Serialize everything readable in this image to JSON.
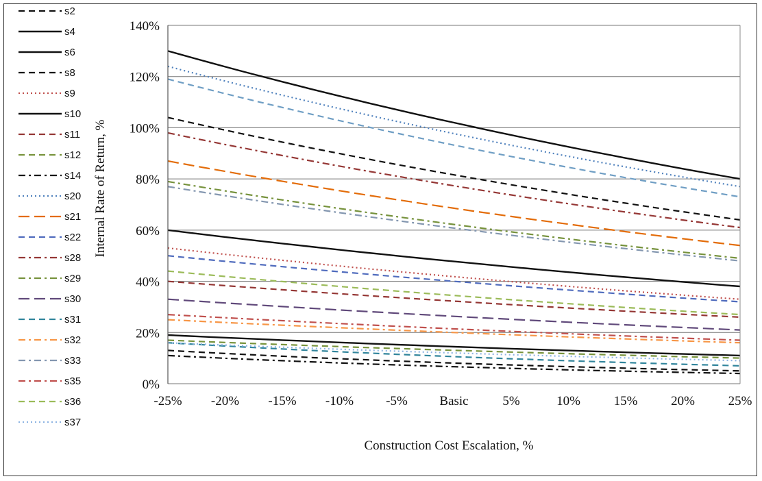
{
  "chart_data": {
    "type": "line",
    "title": "",
    "xlabel": "Construction Cost Escalation, %",
    "ylabel": "Internal Rate of Return, %",
    "categories": [
      "-25%",
      "-20%",
      "-15%",
      "-10%",
      "-5%",
      "Basic",
      "5%",
      "10%",
      "15%",
      "20%",
      "25%"
    ],
    "x_percent": [
      -25,
      -20,
      -15,
      -10,
      -5,
      0,
      5,
      10,
      15,
      20,
      25
    ],
    "ylim": [
      0,
      140
    ],
    "yticks": [
      "0%",
      "20%",
      "40%",
      "60%",
      "80%",
      "100%",
      "120%",
      "140%"
    ],
    "grid": "horizontal",
    "legend_position": "left",
    "series": [
      {
        "name": "s2",
        "color": "#111111",
        "dash": "dash",
        "start": 13,
        "end": 5
      },
      {
        "name": "s4",
        "color": "#111111",
        "dash": "solid",
        "start": 130,
        "end": 80
      },
      {
        "name": "s6",
        "color": "#111111",
        "dash": "solid",
        "start": 60,
        "end": 38
      },
      {
        "name": "s8",
        "color": "#111111",
        "dash": "dash",
        "start": 104,
        "end": 64
      },
      {
        "name": "s9",
        "color": "#c0504d",
        "dash": "dot",
        "start": 53,
        "end": 33
      },
      {
        "name": "s10",
        "color": "#111111",
        "dash": "solid",
        "start": 19,
        "end": 11
      },
      {
        "name": "s11",
        "color": "#943634",
        "dash": "dash",
        "start": 40,
        "end": 26
      },
      {
        "name": "s12",
        "color": "#77933c",
        "dash": "dash",
        "start": 17,
        "end": 10
      },
      {
        "name": "s14",
        "color": "#111111",
        "dash": "dashdot",
        "start": 11,
        "end": 4
      },
      {
        "name": "s20",
        "color": "#4f81bd",
        "dash": "dot",
        "start": 124,
        "end": 77
      },
      {
        "name": "s21",
        "color": "#e36c09",
        "dash": "longdash",
        "start": 87,
        "end": 54
      },
      {
        "name": "s22",
        "color": "#4f6bbd",
        "dash": "dash",
        "start": 50,
        "end": 32
      },
      {
        "name": "s28",
        "color": "#953735",
        "dash": "dashdot",
        "start": 98,
        "end": 61
      },
      {
        "name": "s29",
        "color": "#76923c",
        "dash": "dashdot",
        "start": 79,
        "end": 49
      },
      {
        "name": "s30",
        "color": "#60497a",
        "dash": "longdash",
        "start": 33,
        "end": 21
      },
      {
        "name": "s31",
        "color": "#31859c",
        "dash": "dash",
        "start": 16,
        "end": 7
      },
      {
        "name": "s32",
        "color": "#f79646",
        "dash": "dashdot",
        "start": 25,
        "end": 16
      },
      {
        "name": "s33",
        "color": "#8497b0",
        "dash": "dashdot",
        "start": 77,
        "end": 48
      },
      {
        "name": "s35",
        "color": "#c0504d",
        "dash": "dashdot",
        "start": 27,
        "end": 17
      },
      {
        "name": "s36",
        "color": "#9bbb59",
        "dash": "dash",
        "start": 44,
        "end": 27
      },
      {
        "name": "s37",
        "color": "#8eb4e3",
        "dash": "dot",
        "start": 16,
        "end": 9
      },
      {
        "name": "",
        "color": "#6f9ec4",
        "dash": "dash",
        "start": 119,
        "end": 73
      }
    ]
  }
}
